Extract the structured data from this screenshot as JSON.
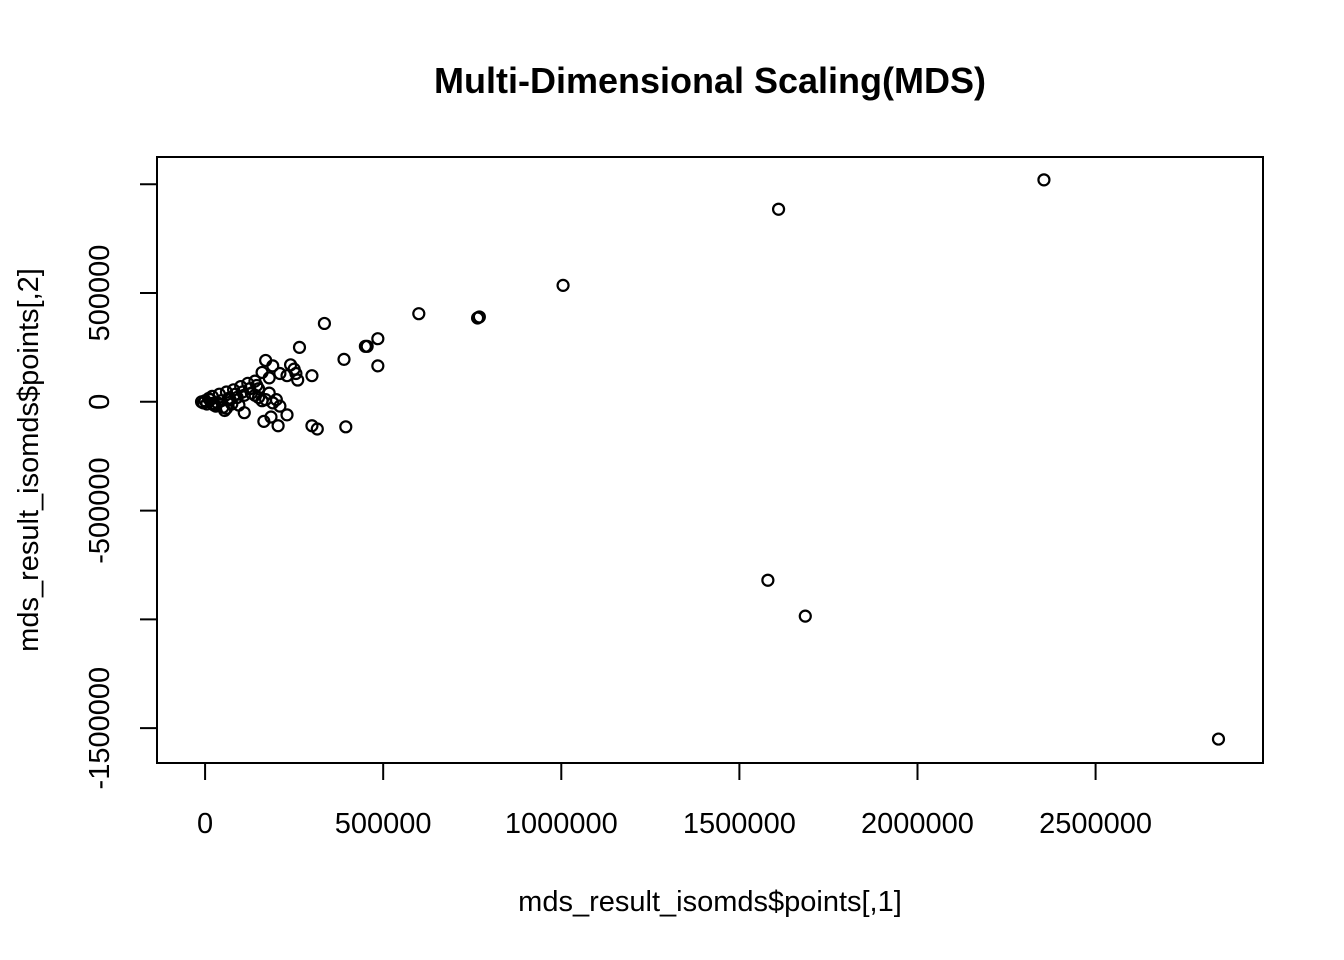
{
  "chart_data": {
    "type": "scatter",
    "title": "Multi-Dimensional Scaling(MDS)",
    "xlabel": "mds_result_isomds$points[,1]",
    "ylabel": "mds_result_isomds$points[,2]",
    "xlim": [
      -135000,
      2970000
    ],
    "ylim": [
      -1660000,
      1125000
    ],
    "xticks": [
      0,
      500000,
      1000000,
      1500000,
      2000000,
      2500000
    ],
    "yticks": [
      -1500000,
      -1000000,
      -500000,
      0,
      500000,
      1000000
    ],
    "ytick_labels": [
      "-1500000",
      "",
      "-500000",
      "0",
      "500000",
      ""
    ],
    "grid": false,
    "legend": "none",
    "points": [
      [
        2355000,
        1020000
      ],
      [
        1610000,
        885000
      ],
      [
        1005000,
        535000
      ],
      [
        600000,
        405000
      ],
      [
        770000,
        390000
      ],
      [
        765000,
        385000
      ],
      [
        335000,
        360000
      ],
      [
        485000,
        290000
      ],
      [
        455000,
        255000
      ],
      [
        450000,
        255000
      ],
      [
        265000,
        250000
      ],
      [
        390000,
        195000
      ],
      [
        170000,
        190000
      ],
      [
        485000,
        165000
      ],
      [
        240000,
        170000
      ],
      [
        190000,
        165000
      ],
      [
        250000,
        150000
      ],
      [
        160000,
        135000
      ],
      [
        210000,
        130000
      ],
      [
        255000,
        130000
      ],
      [
        300000,
        120000
      ],
      [
        230000,
        120000
      ],
      [
        180000,
        110000
      ],
      [
        260000,
        100000
      ],
      [
        140000,
        95000
      ],
      [
        120000,
        85000
      ],
      [
        100000,
        70000
      ],
      [
        150000,
        60000
      ],
      [
        80000,
        55000
      ],
      [
        60000,
        45000
      ],
      [
        40000,
        35000
      ],
      [
        20000,
        25000
      ],
      [
        10000,
        15000
      ],
      [
        0,
        5000
      ],
      [
        -10000,
        0
      ],
      [
        5000,
        -10000
      ],
      [
        25000,
        -15000
      ],
      [
        50000,
        -25000
      ],
      [
        70000,
        10000
      ],
      [
        90000,
        20000
      ],
      [
        110000,
        30000
      ],
      [
        130000,
        40000
      ],
      [
        150000,
        20000
      ],
      [
        170000,
        10000
      ],
      [
        190000,
        -5000
      ],
      [
        200000,
        10000
      ],
      [
        210000,
        -20000
      ],
      [
        230000,
        -60000
      ],
      [
        110000,
        -50000
      ],
      [
        55000,
        -40000
      ],
      [
        30000,
        -20000
      ],
      [
        185000,
        -70000
      ],
      [
        165000,
        -90000
      ],
      [
        205000,
        -110000
      ],
      [
        300000,
        -110000
      ],
      [
        315000,
        -125000
      ],
      [
        395000,
        -115000
      ],
      [
        1580000,
        -820000
      ],
      [
        1685000,
        -985000
      ],
      [
        2845000,
        -1550000
      ],
      [
        35000,
        -5000
      ],
      [
        45000,
        5000
      ],
      [
        65000,
        15000
      ],
      [
        85000,
        35000
      ],
      [
        105000,
        45000
      ],
      [
        125000,
        60000
      ],
      [
        145000,
        75000
      ],
      [
        15000,
        10000
      ],
      [
        -5000,
        -5000
      ],
      [
        20000,
        -8000
      ],
      [
        75000,
        -10000
      ],
      [
        95000,
        -15000
      ],
      [
        160000,
        5000
      ],
      [
        180000,
        40000
      ],
      [
        140000,
        30000
      ],
      [
        60000,
        -30000
      ]
    ]
  }
}
